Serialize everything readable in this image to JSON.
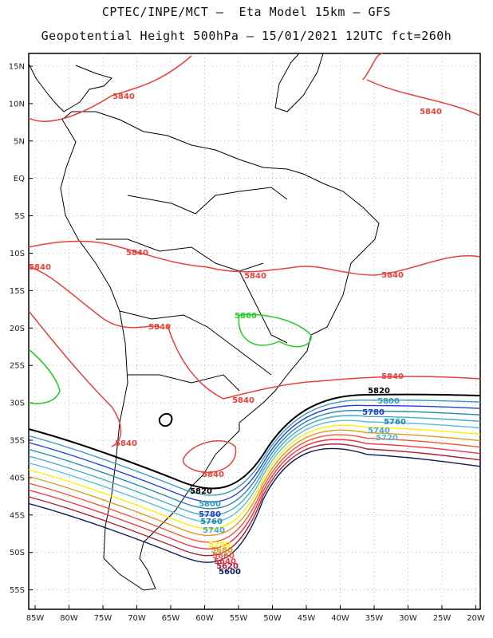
{
  "title_line1": "CPTEC/INPE/MCT –  Eta Model 15km – GFS",
  "title_line2": "Geopotential Height 500hPa – 15/01/2021 12UTC fct=260h",
  "lat_labels": [
    "15N",
    "10N",
    "5N",
    "EQ",
    "5S",
    "10S",
    "15S",
    "20S",
    "25S",
    "30S",
    "35S",
    "40S",
    "45S",
    "50S",
    "55S"
  ],
  "lon_labels": [
    "85W",
    "80W",
    "75W",
    "70W",
    "65W",
    "60W",
    "55W",
    "50W",
    "45W",
    "40W",
    "35W",
    "30W",
    "25W",
    "20W"
  ],
  "colors": {
    "c5840": "#e8403a",
    "c5860": "#22cc22",
    "c5820": "#000000",
    "c5800": "#3399bb",
    "c5780": "#1f3fd6",
    "c5760": "#2288aa",
    "c5740": "#44aacc",
    "c5720": "#55bbdd",
    "c5700": "#ffee00",
    "c5680": "#dd9922",
    "c5660": "#ee5533",
    "c5640": "#ee3344",
    "c5620": "#aa2233",
    "c5600": "#0a1a5a",
    "land": "#000000",
    "grid": "#888888"
  },
  "contour_labels": {
    "l5840": "5840",
    "l5860": "5860",
    "l5820": "5820",
    "l5800": "5800",
    "l5780": "5780",
    "l5760": "5760",
    "l5740": "5740",
    "l5720": "5720",
    "l5700": "5700",
    "l5680": "5680",
    "l5660": "5660",
    "l5640": "5640",
    "l5620": "5620",
    "l5600": "5600"
  }
}
